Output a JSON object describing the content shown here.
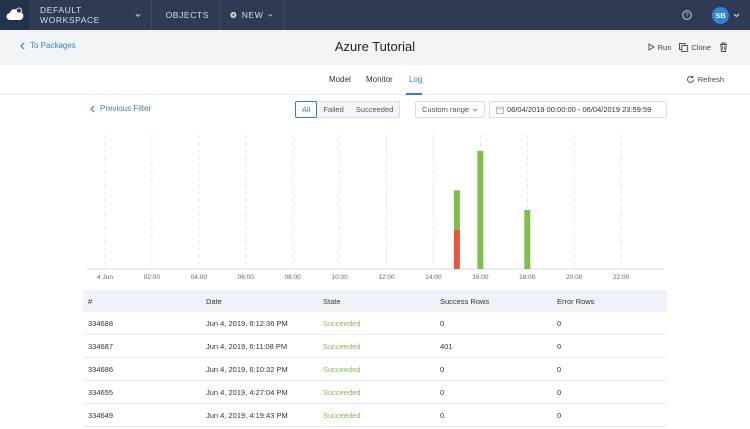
{
  "topnav": {
    "workspace": "DEFAULT WORKSPACE",
    "objects": "OBJECTS",
    "new": "NEW",
    "avatar_initials": "SB"
  },
  "subheader": {
    "back_label": "To Packages",
    "title": "Azure Tutorial",
    "run_label": "Run",
    "clone_label": "Clone"
  },
  "tabs": {
    "model": "Model",
    "monitor": "Monitor",
    "log": "Log",
    "refresh": "Refresh"
  },
  "filters": {
    "previous_filter": "Previous Filter",
    "all": "All",
    "failed": "Failed",
    "succeeded": "Succeeded",
    "range_select": "Custom range",
    "date_range": "06/04/2019 00:00:00 - 06/04/2019 23:59:59"
  },
  "colors": {
    "success": "#7cbf4a",
    "failure": "#e8553a",
    "accent": "#2f7fd1",
    "nav_bg": "#2e3b52"
  },
  "chart_data": {
    "type": "bar",
    "stacked": true,
    "x_ticks": [
      "4 Jun",
      "02:00",
      "04:00",
      "06:00",
      "08:00",
      "10:00",
      "12:00",
      "14:00",
      "16:00",
      "18:00",
      "20:00",
      "22:00"
    ],
    "x_range_hours": [
      0,
      24
    ],
    "bars": [
      {
        "hour": 15.0,
        "succeeded": 1,
        "failed": 1
      },
      {
        "hour": 16.0,
        "succeeded": 3,
        "failed": 0
      },
      {
        "hour": 18.0,
        "succeeded": 1.5,
        "failed": 0
      }
    ],
    "grid": "vertical-dashed"
  },
  "table": {
    "headers": [
      "#",
      "Date",
      "State",
      "Success Rows",
      "Error Rows"
    ],
    "rows": [
      {
        "id": "334688",
        "date": "Jun 4, 2019, 6:12:36 PM",
        "state": "Succeeded",
        "success_rows": "0",
        "error_rows": "0"
      },
      {
        "id": "334687",
        "date": "Jun 4, 2019, 6:11:08 PM",
        "state": "Succeeded",
        "success_rows": "401",
        "error_rows": "0"
      },
      {
        "id": "334686",
        "date": "Jun 4, 2019, 6:10:32 PM",
        "state": "Succeeded",
        "success_rows": "0",
        "error_rows": "0"
      },
      {
        "id": "334655",
        "date": "Jun 4, 2019, 4:27:04 PM",
        "state": "Succeeded",
        "success_rows": "0",
        "error_rows": "0"
      },
      {
        "id": "334649",
        "date": "Jun 4, 2019, 4:19:43 PM",
        "state": "Succeeded",
        "success_rows": "0",
        "error_rows": "0"
      }
    ]
  }
}
